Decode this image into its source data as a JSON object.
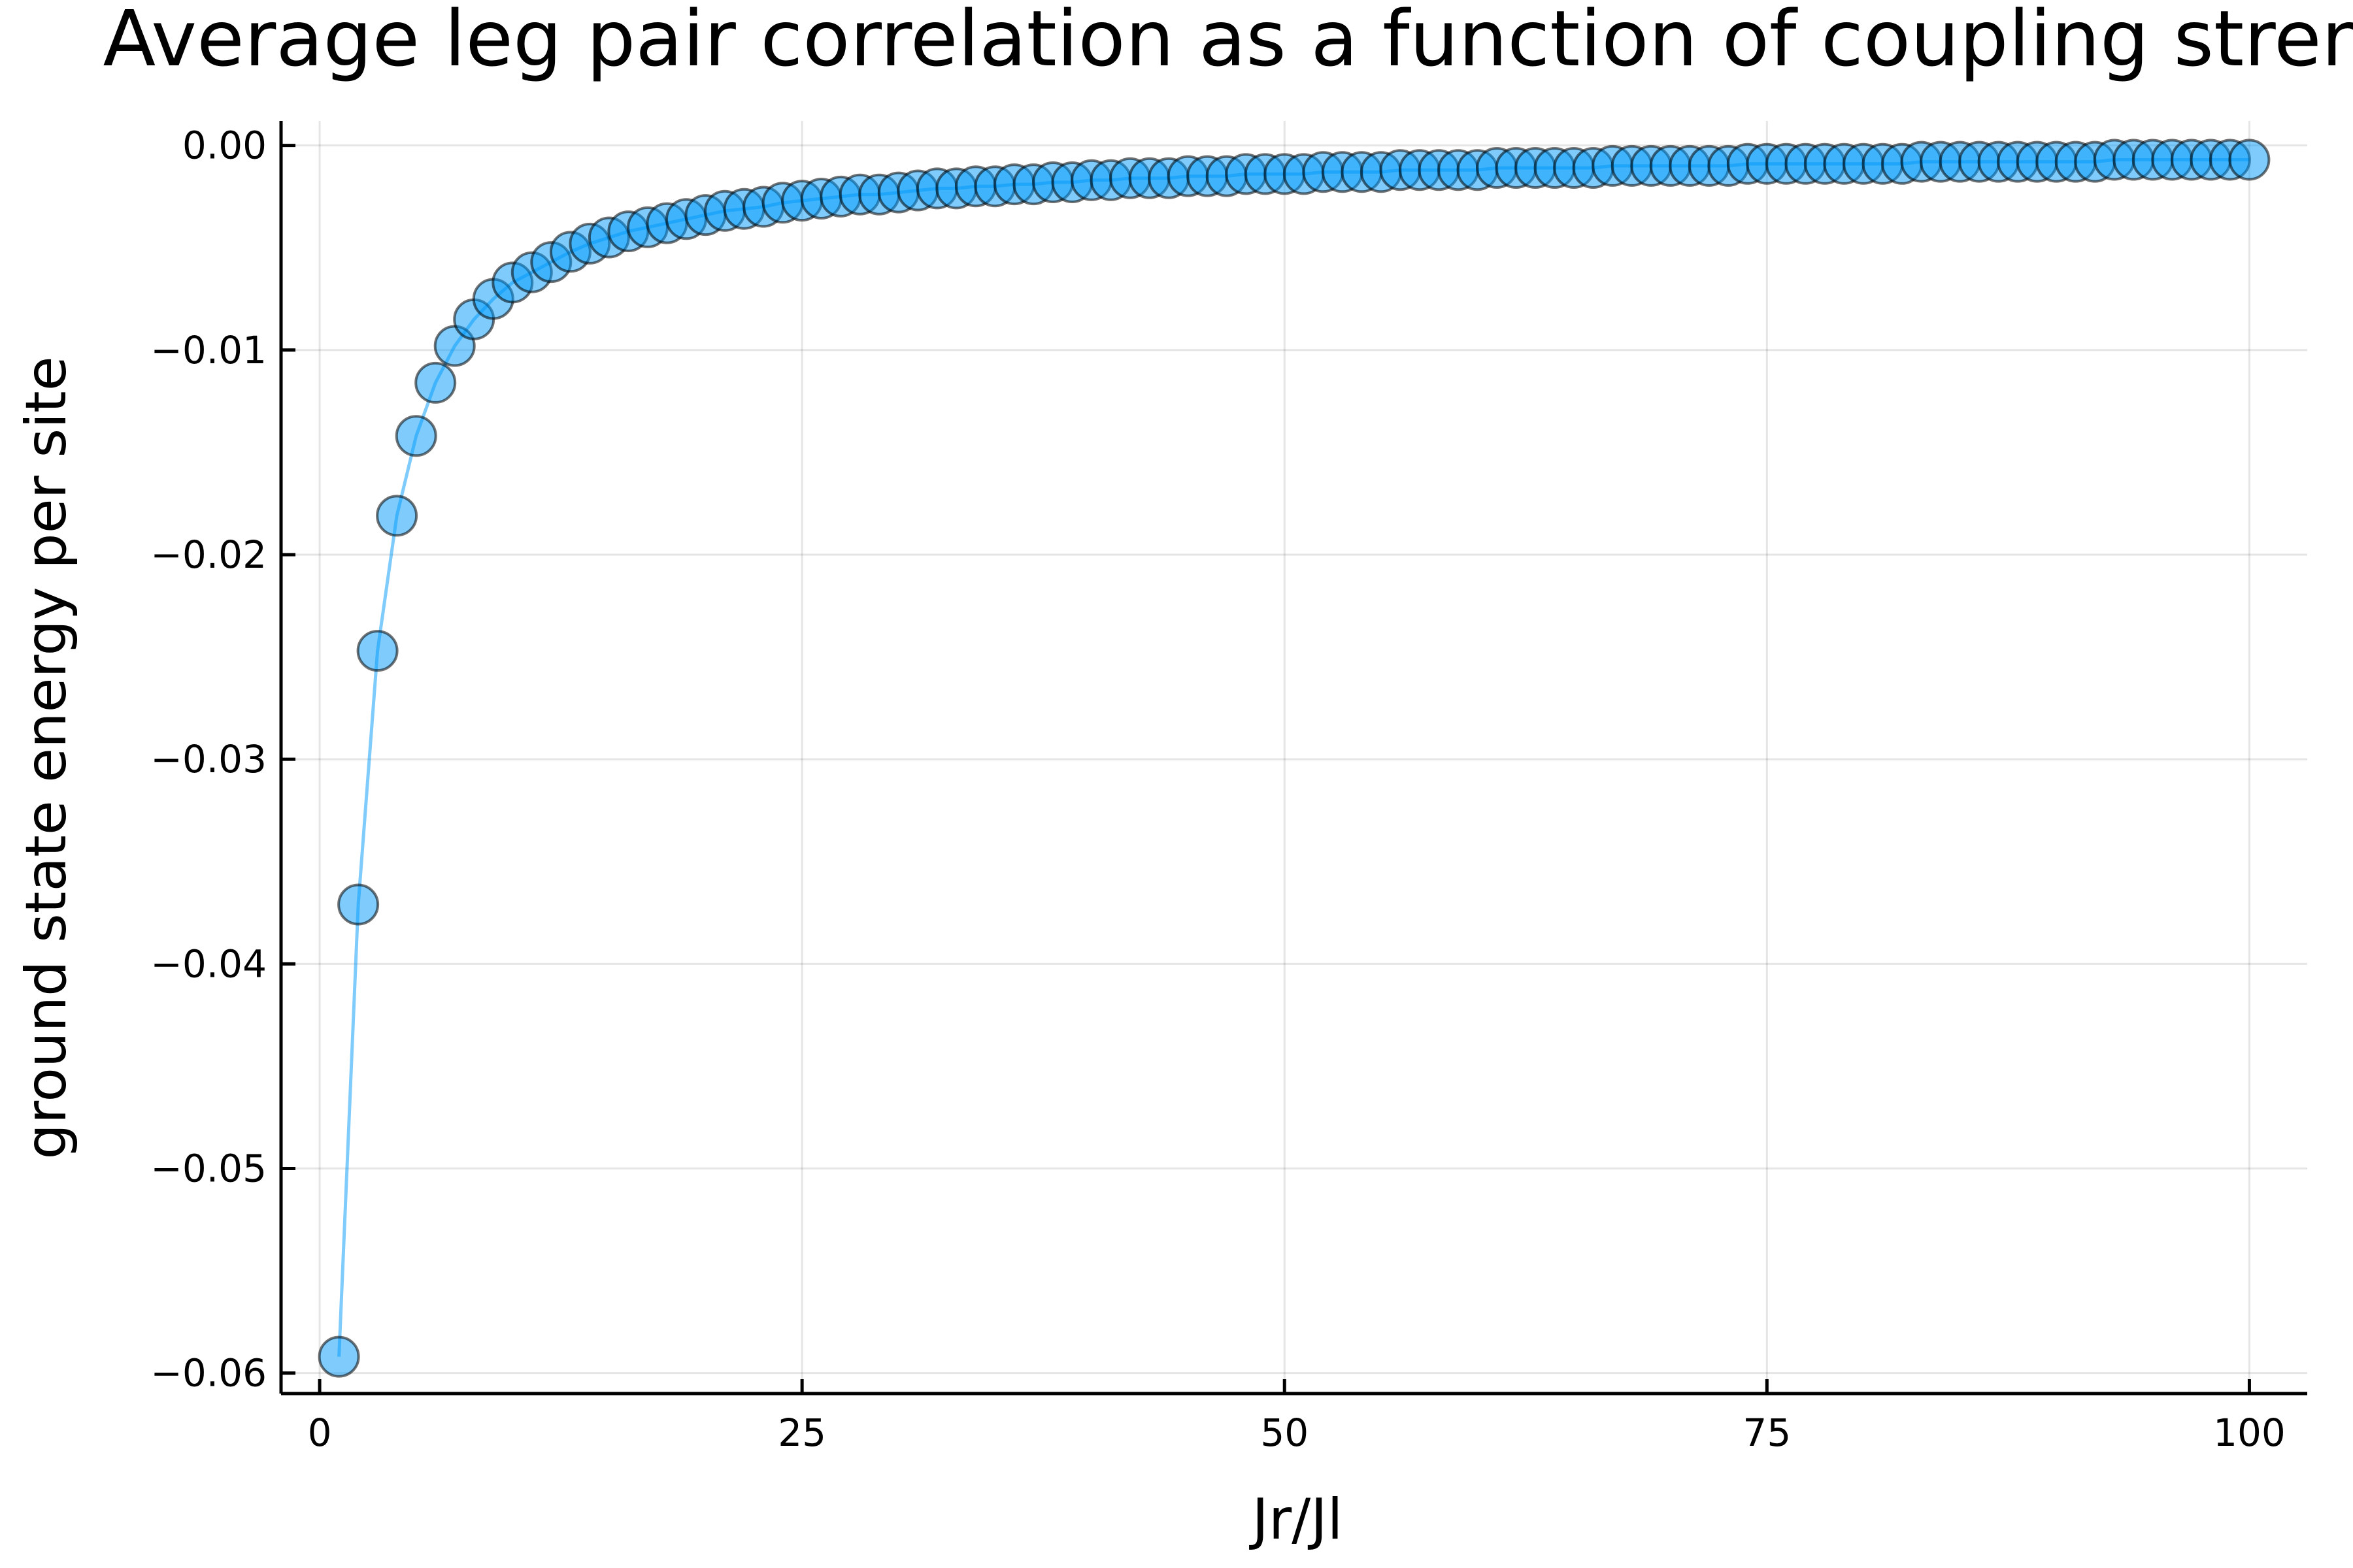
{
  "chart_data": {
    "type": "scatter",
    "title": "Average leg pair correlation as a function of coupling strength",
    "xlabel": "Jr/Jl",
    "ylabel": "ground state energy per site",
    "xlim": [
      -2,
      103
    ],
    "ylim": [
      -0.061,
      0.0012
    ],
    "xticks": [
      0,
      25,
      50,
      75,
      100
    ],
    "xtick_labels": [
      "0",
      "25",
      "50",
      "75",
      "100"
    ],
    "yticks": [
      0.0,
      -0.01,
      -0.02,
      -0.03,
      -0.04,
      -0.05,
      -0.06
    ],
    "ytick_labels": [
      "0.00",
      "−0.01",
      "−0.02",
      "−0.03",
      "−0.04",
      "−0.05",
      "−0.06"
    ],
    "grid": true,
    "legend": "none",
    "series_color": "#009AFA",
    "marker": "circle",
    "line": true,
    "series": [
      {
        "x": [
          1,
          2,
          3,
          4,
          5,
          6,
          7,
          8,
          9,
          10,
          11,
          12,
          13,
          14,
          15,
          16,
          17,
          18,
          19,
          20,
          21,
          22,
          23,
          24,
          25,
          26,
          27,
          28,
          29,
          30,
          31,
          32,
          33,
          34,
          35,
          36,
          37,
          38,
          39,
          40,
          41,
          42,
          43,
          44,
          45,
          46,
          47,
          48,
          49,
          50,
          51,
          52,
          53,
          54,
          55,
          56,
          57,
          58,
          59,
          60,
          61,
          62,
          63,
          64,
          65,
          66,
          67,
          68,
          69,
          70,
          71,
          72,
          73,
          74,
          75,
          76,
          77,
          78,
          79,
          80,
          81,
          82,
          83,
          84,
          85,
          86,
          87,
          88,
          89,
          90,
          91,
          92,
          93,
          94,
          95,
          96,
          97,
          98,
          99,
          100
        ],
        "y": [
          -0.0592,
          -0.0371,
          -0.0247,
          -0.0181,
          -0.0142,
          -0.0116,
          -0.0098,
          -0.0085,
          -0.0075,
          -0.0067,
          -0.0062,
          -0.0057,
          -0.0052,
          -0.0048,
          -0.0045,
          -0.0042,
          -0.004,
          -0.0038,
          -0.0036,
          -0.0034,
          -0.0032,
          -0.0031,
          -0.003,
          -0.0028,
          -0.0027,
          -0.0026,
          -0.0025,
          -0.0024,
          -0.0024,
          -0.0023,
          -0.0022,
          -0.0021,
          -0.0021,
          -0.002,
          -0.002,
          -0.0019,
          -0.0019,
          -0.0018,
          -0.0018,
          -0.0017,
          -0.0017,
          -0.0016,
          -0.0016,
          -0.0016,
          -0.0015,
          -0.0015,
          -0.0015,
          -0.0014,
          -0.0014,
          -0.0014,
          -0.0014,
          -0.0013,
          -0.0013,
          -0.0013,
          -0.0013,
          -0.0012,
          -0.0012,
          -0.0012,
          -0.0012,
          -0.0012,
          -0.0011,
          -0.0011,
          -0.0011,
          -0.0011,
          -0.0011,
          -0.0011,
          -0.001,
          -0.001,
          -0.001,
          -0.001,
          -0.001,
          -0.001,
          -0.001,
          -0.0009,
          -0.0009,
          -0.0009,
          -0.0009,
          -0.0009,
          -0.0009,
          -0.0009,
          -0.0009,
          -0.0009,
          -0.0008,
          -0.0008,
          -0.0008,
          -0.0008,
          -0.0008,
          -0.0008,
          -0.0008,
          -0.0008,
          -0.0008,
          -0.0008,
          -0.0007,
          -0.0007,
          -0.0007,
          -0.0007,
          -0.0007,
          -0.0007,
          -0.0007,
          -0.0007
        ]
      }
    ]
  }
}
